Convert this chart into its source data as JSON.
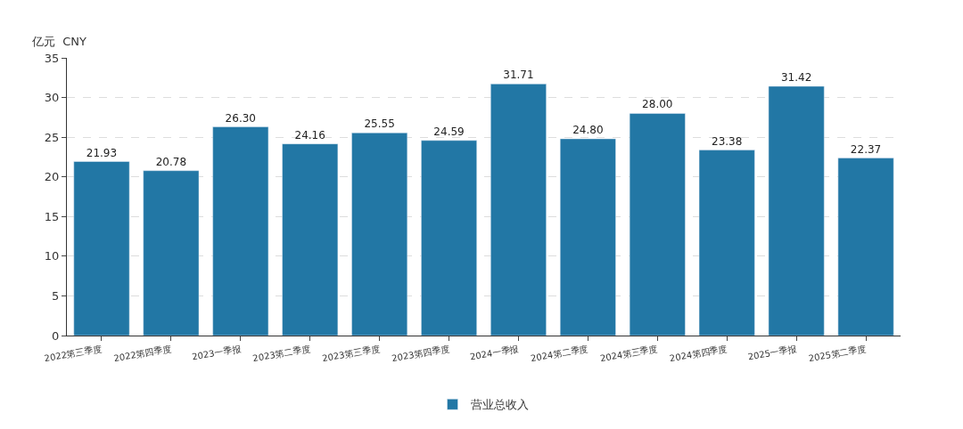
{
  "chart_data": {
    "type": "bar",
    "ylabel": "亿元  CNY",
    "categories": [
      "2022第三季度",
      "2022第四季度",
      "2023一季报",
      "2023第二季度",
      "2023第三季度",
      "2023第四季度",
      "2024一季报",
      "2024第二季度",
      "2024第三季度",
      "2024第四季度",
      "2025一季报",
      "2025第二季度"
    ],
    "series": [
      {
        "name": "营业总收入",
        "color": "#2277a5",
        "values": [
          21.93,
          20.78,
          26.3,
          24.16,
          25.55,
          24.59,
          31.71,
          24.8,
          28.0,
          23.38,
          31.42,
          22.37
        ]
      }
    ],
    "value_labels": [
      "21.93",
      "20.78",
      "26.30",
      "24.16",
      "25.55",
      "24.59",
      "31.71",
      "24.80",
      "28.00",
      "23.38",
      "31.42",
      "22.37"
    ],
    "ylim": [
      0,
      35
    ],
    "yticks": [
      0,
      5,
      10,
      15,
      20,
      25,
      30,
      35
    ],
    "grid": "y",
    "legend": "bottom"
  }
}
